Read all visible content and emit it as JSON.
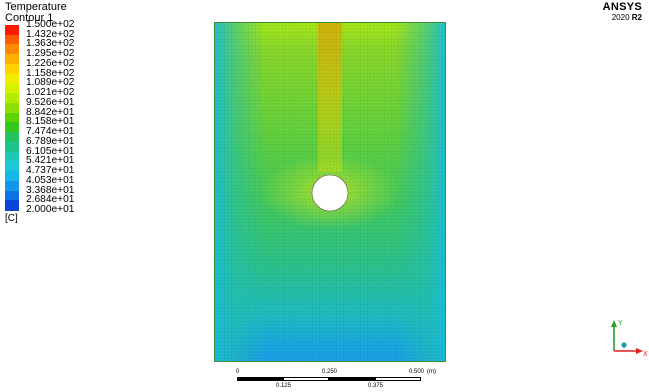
{
  "legend": {
    "title": "Temperature",
    "subtitle": "Contour 1",
    "unit": "[C]",
    "ticks": [
      "1.500e+02",
      "1.432e+02",
      "1.363e+02",
      "1.295e+02",
      "1.226e+02",
      "1.158e+02",
      "1.089e+02",
      "1.021e+02",
      "9.526e+01",
      "8.842e+01",
      "8.158e+01",
      "7.474e+01",
      "6.789e+01",
      "6.105e+01",
      "5.421e+01",
      "4.737e+01",
      "4.053e+01",
      "3.368e+01",
      "2.684e+01",
      "2.000e+01"
    ],
    "colors": [
      "#ff1a00",
      "#ff5a00",
      "#ff8a00",
      "#ffb000",
      "#ffd200",
      "#f2ec00",
      "#d6f200",
      "#b4ec00",
      "#8ee000",
      "#5ed400",
      "#34c81e",
      "#22c25e",
      "#1cc48e",
      "#1cc8b6",
      "#1ac8d6",
      "#16b8e6",
      "#1296ea",
      "#0e72e4",
      "#0a44d6"
    ]
  },
  "logo": {
    "name": "ANSYS",
    "year": "2020",
    "release": "R2"
  },
  "scale_bar": {
    "top_labels": [
      "0",
      "0.250",
      "0.500"
    ],
    "unit": "(m)",
    "bottom_labels": [
      "0.125",
      "0.375"
    ]
  },
  "triad": {
    "y_label": "Y",
    "x_label": "X",
    "colors": {
      "y": "#2aa02a",
      "x": "#e02020",
      "z": "#1a9aa8"
    }
  }
}
